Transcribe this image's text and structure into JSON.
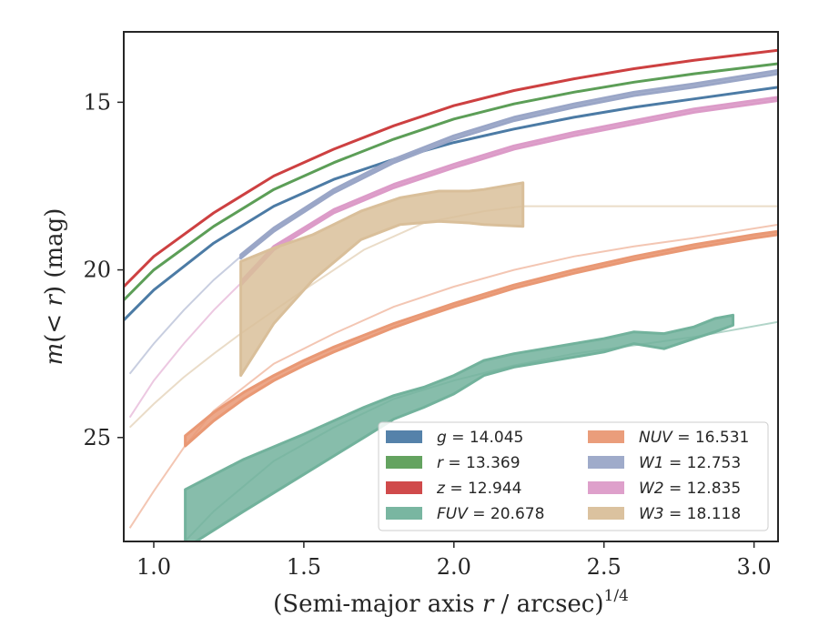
{
  "chart_data": {
    "type": "line",
    "xlabel": "(Semi-major axis r / arcsec)^(1/4)",
    "ylabel": "m(< r) (mag)",
    "xlim": [
      0.9,
      3.08
    ],
    "ylim": [
      28.1,
      12.9
    ],
    "y_inverted": true,
    "xticks": [
      "1.0",
      "1.5",
      "2.0",
      "2.5",
      "3.0"
    ],
    "yticks": [
      "15",
      "20",
      "25"
    ],
    "legend_position": "lower-right",
    "series": [
      {
        "name": "g = 14.045",
        "label_var": "g",
        "label_val": "14.045",
        "color": "#4c7ba5",
        "band": [
          [
            0.9,
            21.5,
            21.5
          ],
          [
            1.0,
            20.6,
            20.6
          ],
          [
            1.2,
            19.2,
            19.2
          ],
          [
            1.4,
            18.1,
            18.1
          ],
          [
            1.6,
            17.3,
            17.3
          ],
          [
            1.8,
            16.7,
            16.7
          ],
          [
            2.0,
            16.2,
            16.2
          ],
          [
            2.2,
            15.8,
            15.8
          ],
          [
            2.4,
            15.45,
            15.45
          ],
          [
            2.6,
            15.15,
            15.15
          ],
          [
            2.8,
            14.9,
            14.9
          ],
          [
            3.08,
            14.55,
            14.55
          ]
        ]
      },
      {
        "name": "r = 13.369",
        "label_var": "r",
        "label_val": "13.369",
        "color": "#5c9e57",
        "band": [
          [
            0.9,
            20.9,
            20.9
          ],
          [
            1.0,
            20.0,
            20.0
          ],
          [
            1.2,
            18.7,
            18.7
          ],
          [
            1.4,
            17.6,
            17.6
          ],
          [
            1.6,
            16.8,
            16.8
          ],
          [
            1.8,
            16.1,
            16.1
          ],
          [
            2.0,
            15.5,
            15.5
          ],
          [
            2.2,
            15.05,
            15.05
          ],
          [
            2.4,
            14.7,
            14.7
          ],
          [
            2.6,
            14.4,
            14.4
          ],
          [
            2.8,
            14.15,
            14.15
          ],
          [
            3.08,
            13.85,
            13.85
          ]
        ]
      },
      {
        "name": "z = 12.944",
        "label_var": "z",
        "label_val": "12.944",
        "color": "#cd4041",
        "band": [
          [
            0.9,
            20.5,
            20.5
          ],
          [
            1.0,
            19.6,
            19.6
          ],
          [
            1.2,
            18.3,
            18.3
          ],
          [
            1.4,
            17.2,
            17.2
          ],
          [
            1.6,
            16.4,
            16.4
          ],
          [
            1.8,
            15.7,
            15.7
          ],
          [
            2.0,
            15.1,
            15.1
          ],
          [
            2.2,
            14.65,
            14.65
          ],
          [
            2.4,
            14.3,
            14.3
          ],
          [
            2.6,
            14.0,
            14.0
          ],
          [
            2.8,
            13.75,
            13.75
          ],
          [
            3.08,
            13.45,
            13.45
          ]
        ]
      },
      {
        "name": "FUV = 20.678",
        "label_var": "FUV",
        "label_val": "20.678",
        "color": "#72b29c",
        "faint": [
          [
            1.05,
            28.6
          ],
          [
            1.2,
            27.2
          ],
          [
            1.4,
            25.7
          ],
          [
            1.6,
            24.7
          ],
          [
            1.8,
            23.85
          ],
          [
            2.0,
            23.3
          ],
          [
            2.2,
            22.85
          ],
          [
            2.4,
            22.5
          ],
          [
            2.6,
            22.25
          ],
          [
            2.8,
            22.0
          ],
          [
            3.08,
            21.55
          ]
        ],
        "band": [
          [
            1.105,
            26.55,
            28.3
          ],
          [
            1.3,
            25.65,
            27.2
          ],
          [
            1.5,
            24.9,
            26.1
          ],
          [
            1.7,
            24.1,
            25.0
          ],
          [
            1.8,
            23.75,
            24.45
          ],
          [
            1.9,
            23.5,
            24.1
          ],
          [
            2.0,
            23.15,
            23.7
          ],
          [
            2.1,
            22.7,
            23.15
          ],
          [
            2.2,
            22.5,
            22.9
          ],
          [
            2.3,
            22.35,
            22.75
          ],
          [
            2.4,
            22.2,
            22.6
          ],
          [
            2.5,
            22.05,
            22.45
          ],
          [
            2.6,
            21.85,
            22.2
          ],
          [
            2.7,
            21.9,
            22.35
          ],
          [
            2.8,
            21.7,
            22.05
          ],
          [
            2.87,
            21.45,
            21.85
          ],
          [
            2.93,
            21.35,
            21.65
          ]
        ]
      },
      {
        "name": "NUV = 16.531",
        "label_var": "NUV",
        "label_val": "16.531",
        "color": "#e99874",
        "faint": [
          [
            0.92,
            27.7
          ],
          [
            1.0,
            26.6
          ],
          [
            1.1,
            25.3
          ],
          [
            1.2,
            24.2
          ],
          [
            1.4,
            22.8
          ],
          [
            1.6,
            21.9
          ],
          [
            1.8,
            21.1
          ],
          [
            2.0,
            20.5
          ],
          [
            2.2,
            20.0
          ],
          [
            2.4,
            19.6
          ],
          [
            2.6,
            19.3
          ],
          [
            2.8,
            19.05
          ],
          [
            3.08,
            18.65
          ]
        ],
        "band": [
          [
            1.105,
            24.95,
            25.25
          ],
          [
            1.2,
            24.25,
            24.5
          ],
          [
            1.3,
            23.65,
            23.85
          ],
          [
            1.4,
            23.15,
            23.3
          ],
          [
            1.5,
            22.7,
            22.85
          ],
          [
            1.6,
            22.3,
            22.45
          ],
          [
            1.7,
            21.95,
            22.08
          ],
          [
            1.8,
            21.6,
            21.72
          ],
          [
            1.9,
            21.3,
            21.4
          ],
          [
            2.0,
            21.0,
            21.1
          ],
          [
            2.2,
            20.45,
            20.55
          ],
          [
            2.4,
            20.0,
            20.1
          ],
          [
            2.6,
            19.6,
            19.7
          ],
          [
            2.8,
            19.25,
            19.35
          ],
          [
            3.0,
            18.95,
            19.05
          ],
          [
            3.08,
            18.85,
            18.95
          ]
        ]
      },
      {
        "name": "W1 = 12.753",
        "label_var": "W1",
        "label_val": "12.753",
        "color": "#9aa6c7",
        "faint": [
          [
            0.92,
            23.1
          ],
          [
            1.0,
            22.2
          ],
          [
            1.1,
            21.2
          ],
          [
            1.2,
            20.3
          ],
          [
            1.29,
            19.6
          ]
        ],
        "band": [
          [
            1.29,
            19.55,
            19.65
          ],
          [
            1.4,
            18.75,
            18.85
          ],
          [
            1.6,
            17.6,
            17.7
          ],
          [
            1.8,
            16.7,
            16.8
          ],
          [
            2.0,
            16.0,
            16.1
          ],
          [
            2.2,
            15.45,
            15.55
          ],
          [
            2.4,
            15.05,
            15.15
          ],
          [
            2.6,
            14.7,
            14.8
          ],
          [
            2.8,
            14.45,
            14.55
          ],
          [
            3.08,
            14.05,
            14.15
          ]
        ]
      },
      {
        "name": "W2 = 12.835",
        "label_var": "W2",
        "label_val": "12.835",
        "color": "#dc9bc8",
        "faint": [
          [
            0.92,
            24.4
          ],
          [
            1.0,
            23.3
          ],
          [
            1.1,
            22.2
          ],
          [
            1.2,
            21.2
          ],
          [
            1.29,
            20.4
          ]
        ],
        "band": [
          [
            1.29,
            20.35,
            20.45
          ],
          [
            1.4,
            19.3,
            19.4
          ],
          [
            1.6,
            18.2,
            18.3
          ],
          [
            1.8,
            17.45,
            17.55
          ],
          [
            2.0,
            16.85,
            16.95
          ],
          [
            2.2,
            16.3,
            16.4
          ],
          [
            2.4,
            15.9,
            16.0
          ],
          [
            2.6,
            15.55,
            15.65
          ],
          [
            2.8,
            15.2,
            15.3
          ],
          [
            3.08,
            14.85,
            14.95
          ]
        ]
      },
      {
        "name": "W3 = 18.118",
        "label_var": "W3",
        "label_val": "18.118",
        "color": "#d9bf9a",
        "faint": [
          [
            0.92,
            24.7
          ],
          [
            1.0,
            24.0
          ],
          [
            1.1,
            23.2
          ],
          [
            1.2,
            22.5
          ],
          [
            1.29,
            21.9
          ],
          [
            1.5,
            20.6
          ],
          [
            1.7,
            19.4
          ],
          [
            1.9,
            18.6
          ],
          [
            2.1,
            18.25
          ],
          [
            2.23,
            18.1
          ],
          [
            2.5,
            18.1
          ],
          [
            3.08,
            18.1
          ]
        ],
        "band": [
          [
            1.29,
            19.75,
            23.15
          ],
          [
            1.4,
            19.35,
            21.6
          ],
          [
            1.53,
            18.95,
            20.3
          ],
          [
            1.69,
            18.25,
            19.1
          ],
          [
            1.82,
            17.85,
            18.65
          ],
          [
            1.95,
            17.65,
            18.55
          ],
          [
            2.05,
            17.65,
            18.6
          ],
          [
            2.1,
            17.6,
            18.65
          ],
          [
            2.23,
            17.4,
            18.7
          ]
        ]
      }
    ]
  }
}
